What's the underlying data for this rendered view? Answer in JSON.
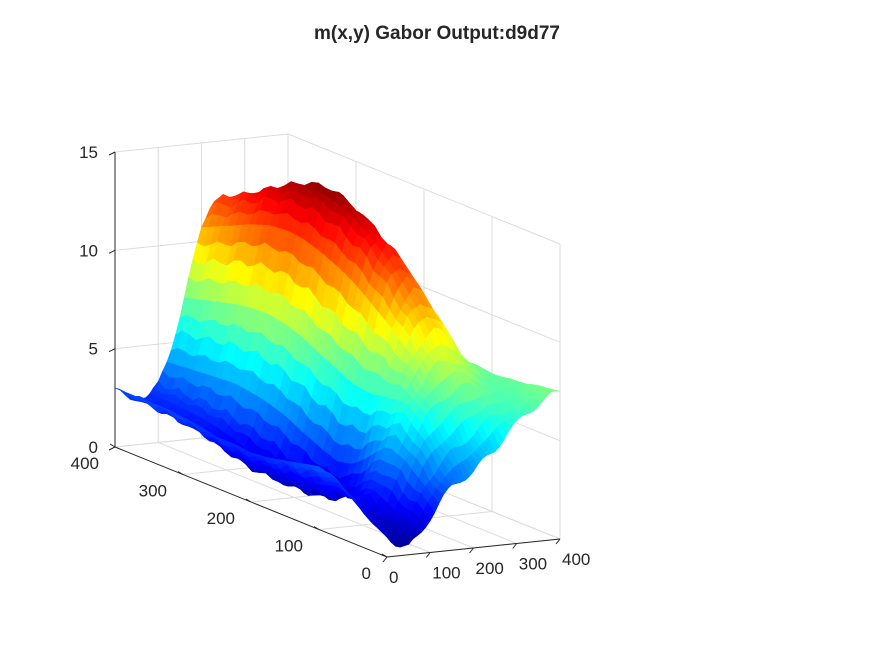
{
  "chart_data": {
    "type": "surface",
    "title": "m(x,y) Gabor Output:d9d77",
    "xlabel": "",
    "ylabel": "",
    "zlabel": "",
    "xlim": [
      0,
      400
    ],
    "ylim": [
      0,
      400
    ],
    "zlim": [
      0,
      15
    ],
    "x_ticks": [
      "0",
      "100",
      "200",
      "300",
      "400"
    ],
    "y_ticks": [
      "0",
      "100",
      "200",
      "300",
      "400"
    ],
    "z_ticks": [
      "0",
      "5",
      "10",
      "15"
    ],
    "grid": true,
    "colormap": "jet",
    "grid_step": 25,
    "x": [
      0,
      25,
      50,
      75,
      100,
      125,
      150,
      175,
      200,
      225,
      250,
      275,
      300,
      325,
      350,
      375,
      400
    ],
    "y": [
      0,
      25,
      50,
      75,
      100,
      125,
      150,
      175,
      200,
      225,
      250,
      275,
      300,
      325,
      350,
      375,
      400
    ],
    "z": [
      [
        1.0,
        0.6,
        0.4,
        0.9,
        1.8,
        2.6,
        3.2,
        3.6,
        3.9,
        4.4,
        4.9,
        5.6,
        6.1,
        6.6,
        7.0,
        7.3,
        7.5
      ],
      [
        1.5,
        1.0,
        0.6,
        1.2,
        2.2,
        3.4,
        4.2,
        4.8,
        5.1,
        5.6,
        6.0,
        6.4,
        6.5,
        6.6,
        6.9,
        7.2,
        7.4
      ],
      [
        2.2,
        1.6,
        1.1,
        1.6,
        2.8,
        4.2,
        5.4,
        6.2,
        6.7,
        7.1,
        7.4,
        7.4,
        7.1,
        6.8,
        6.8,
        7.0,
        7.2
      ],
      [
        2.9,
        2.3,
        1.7,
        2.1,
        3.2,
        4.6,
        6.0,
        7.1,
        7.9,
        8.6,
        8.8,
        8.5,
        7.9,
        7.3,
        7.0,
        7.0,
        7.1
      ],
      [
        3.2,
        2.6,
        1.8,
        1.5,
        2.2,
        3.8,
        5.6,
        7.4,
        8.8,
        9.8,
        10.3,
        10.1,
        9.2,
        8.3,
        7.6,
        7.2,
        7.0
      ],
      [
        3.0,
        2.4,
        1.5,
        0.9,
        1.4,
        3.0,
        5.2,
        7.6,
        9.6,
        11.0,
        11.6,
        11.3,
        10.2,
        9.0,
        8.0,
        7.4,
        7.0
      ],
      [
        2.8,
        2.2,
        1.3,
        0.8,
        1.2,
        2.8,
        5.2,
        7.9,
        10.3,
        12.0,
        12.7,
        12.3,
        11.0,
        9.6,
        8.4,
        7.6,
        7.1
      ],
      [
        2.6,
        2.0,
        1.2,
        0.7,
        1.4,
        3.2,
        5.6,
        8.4,
        11.0,
        12.8,
        13.4,
        13.0,
        11.6,
        10.0,
        8.7,
        7.8,
        7.2
      ],
      [
        2.5,
        1.9,
        1.1,
        0.9,
        1.8,
        3.6,
        6.0,
        8.8,
        11.5,
        13.4,
        14.1,
        13.6,
        12.0,
        10.3,
        8.9,
        7.9,
        7.2
      ],
      [
        2.6,
        1.8,
        1.1,
        1.2,
        2.2,
        4.1,
        6.5,
        9.3,
        11.9,
        13.8,
        14.6,
        14.0,
        12.3,
        10.4,
        8.9,
        7.9,
        7.1
      ],
      [
        2.6,
        1.9,
        1.3,
        1.4,
        2.5,
        4.4,
        6.8,
        9.6,
        12.2,
        14.0,
        14.8,
        14.1,
        12.3,
        10.3,
        8.7,
        7.7,
        7.0
      ],
      [
        2.8,
        2.1,
        1.6,
        1.7,
        2.7,
        4.6,
        7.0,
        9.8,
        12.3,
        14.0,
        14.6,
        13.9,
        12.0,
        10.0,
        8.4,
        7.4,
        6.8
      ],
      [
        2.9,
        2.3,
        1.9,
        2.0,
        2.9,
        4.7,
        7.0,
        9.7,
        12.2,
        13.8,
        14.2,
        13.4,
        11.5,
        9.6,
        8.0,
        7.1,
        6.6
      ],
      [
        3.0,
        2.4,
        2.1,
        2.2,
        3.0,
        4.6,
        6.9,
        9.5,
        11.9,
        13.4,
        13.7,
        12.8,
        11.0,
        9.2,
        7.7,
        6.8,
        6.3
      ],
      [
        3.0,
        2.5,
        2.2,
        2.3,
        3.0,
        4.5,
        6.7,
        9.2,
        11.5,
        12.9,
        13.1,
        12.2,
        10.5,
        8.8,
        7.4,
        6.6,
        6.1
      ],
      [
        3.0,
        2.6,
        2.3,
        2.4,
        3.0,
        4.4,
        6.5,
        8.9,
        11.1,
        12.4,
        12.6,
        11.7,
        10.1,
        8.5,
        7.2,
        6.4,
        6.0
      ],
      [
        3.0,
        2.6,
        2.4,
        2.4,
        3.0,
        4.3,
        6.3,
        8.6,
        10.7,
        12.0,
        12.2,
        11.3,
        9.8,
        8.3,
        7.0,
        6.3,
        5.9
      ]
    ]
  }
}
